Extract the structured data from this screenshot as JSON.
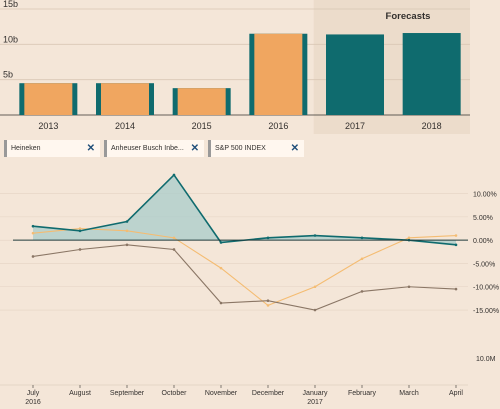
{
  "chart_data": [
    {
      "type": "bar",
      "title": "",
      "categories": [
        "2013",
        "2014",
        "2015",
        "2016",
        "2017",
        "2018"
      ],
      "values": [
        4.5,
        4.5,
        3.8,
        11.5,
        11.4,
        11.6
      ],
      "forecast_categories": [
        "2017",
        "2018"
      ],
      "forecast_label": "Forecasts",
      "yticks": [
        "5b",
        "10b",
        "15b"
      ],
      "ytick_values": [
        5,
        10,
        15
      ],
      "ylim": [
        0,
        15
      ],
      "colors": {
        "actual": "#f0a660",
        "edge": "#0f6b6e",
        "forecast": "#0f6b6e",
        "forecast_bg": "#ecdccb"
      }
    },
    {
      "type": "line",
      "title": "",
      "legend_placement": "top-left",
      "series": [
        {
          "name": "Heineken",
          "color": "#0f6b6e",
          "fill": "#a9cccb"
        },
        {
          "name": "Anheuser Busch Inbe...",
          "color": "#8a7665"
        },
        {
          "name": "S&P 500 INDEX",
          "color": "#f4bc72"
        }
      ],
      "x": [
        "2016-07",
        "2016-08",
        "2016-09",
        "2016-10",
        "2016-11",
        "2016-12",
        "2017-01",
        "2017-02",
        "2017-03",
        "2017-04"
      ],
      "xticks": [
        "July",
        "August",
        "September",
        "October",
        "November",
        "December",
        "January",
        "February",
        "March",
        "April"
      ],
      "xtick_years": [
        {
          "label": "2016",
          "under": "July"
        },
        {
          "label": "2017",
          "under": "January"
        }
      ],
      "series_values": {
        "Heineken": [
          3.0,
          2.0,
          4.0,
          14.0,
          -0.5,
          0.5,
          1.0,
          0.5,
          0.0,
          -1.0
        ],
        "Anheuser Busch Inbe...": [
          -3.5,
          -2.0,
          -1.0,
          -2.0,
          -13.5,
          -13.0,
          -15.0,
          -11.0,
          -10.0,
          -10.5
        ],
        "S&P 500 INDEX": [
          1.5,
          2.5,
          2.0,
          0.5,
          -6.0,
          -14.0,
          -10.0,
          -4.0,
          0.5,
          1.0
        ]
      },
      "yticks": [
        "10.00%",
        "5.00%",
        "0.00%",
        "-5.00%",
        "-10.00%",
        "-15.00%"
      ],
      "ytick_values": [
        10,
        5,
        0,
        -5,
        -10,
        -15
      ],
      "ylim": [
        -18,
        17
      ],
      "volume_label": "10.0M",
      "volume_ylim": [
        0,
        10
      ]
    }
  ]
}
